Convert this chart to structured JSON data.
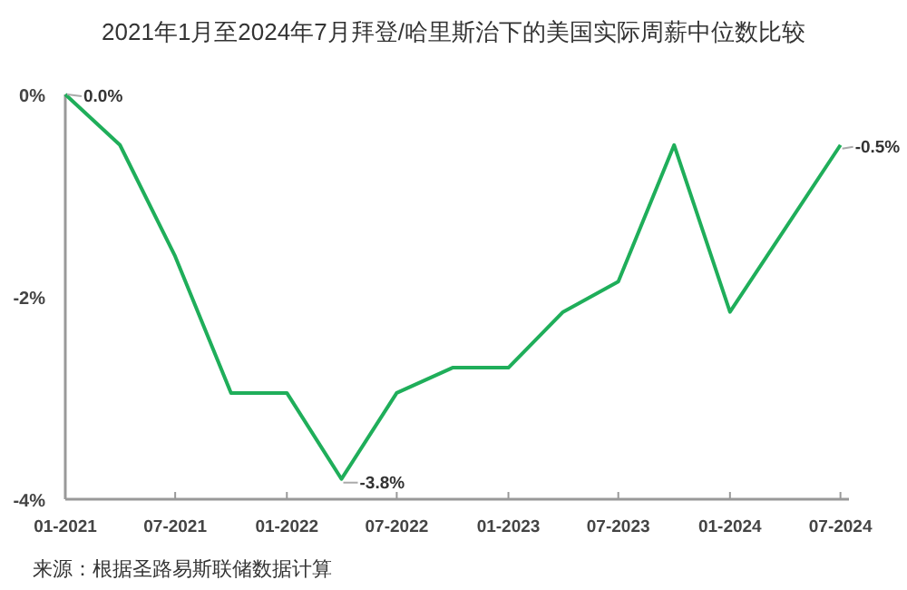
{
  "chart_data": {
    "type": "line",
    "title": "2021年1月至2024年7月拜登/哈里斯治下的美国实际周薪中位数比较",
    "x": [
      "2021-01",
      "2021-04",
      "2021-07",
      "2021-10",
      "2022-01",
      "2022-04",
      "2022-07",
      "2022-10",
      "2023-01",
      "2023-04",
      "2023-07",
      "2023-10",
      "2024-01",
      "2024-07"
    ],
    "series": [
      {
        "color": "#1fae5a",
        "values": [
          0.0,
          -0.5,
          -1.6,
          -2.95,
          -2.95,
          -3.8,
          -2.95,
          -2.7,
          -2.7,
          -2.15,
          -1.85,
          -0.5,
          -2.15,
          -0.5
        ]
      }
    ],
    "xlim": [
      "2021-01-01",
      "2024-07-15"
    ],
    "xticks": [
      {
        "value": "2021-01",
        "label": "01-2021"
      },
      {
        "value": "2021-07",
        "label": "07-2021"
      },
      {
        "value": "2022-01",
        "label": "01-2022"
      },
      {
        "value": "2022-07",
        "label": "07-2022"
      },
      {
        "value": "2023-01",
        "label": "01-2023"
      },
      {
        "value": "2023-07",
        "label": "07-2023"
      },
      {
        "value": "2024-01",
        "label": "01-2024"
      },
      {
        "value": "2024-07",
        "label": "07-2024"
      }
    ],
    "ylim": [
      -4,
      0
    ],
    "yticks": [
      {
        "value": 0,
        "label": "0%"
      },
      {
        "value": -2,
        "label": "-2%"
      },
      {
        "value": -4,
        "label": "-4%"
      }
    ],
    "grid": false,
    "marker": "none",
    "line_style": "solid",
    "annotations": [
      {
        "text": "0.0%",
        "x": "2021-01",
        "y": 0.0
      },
      {
        "text": "-3.8%",
        "x": "2022-04",
        "y": -3.8
      },
      {
        "text": "-0.5%",
        "x": "2024-07",
        "y": -0.5
      },
      "来源：根据圣路易斯联储数据计算"
    ]
  }
}
